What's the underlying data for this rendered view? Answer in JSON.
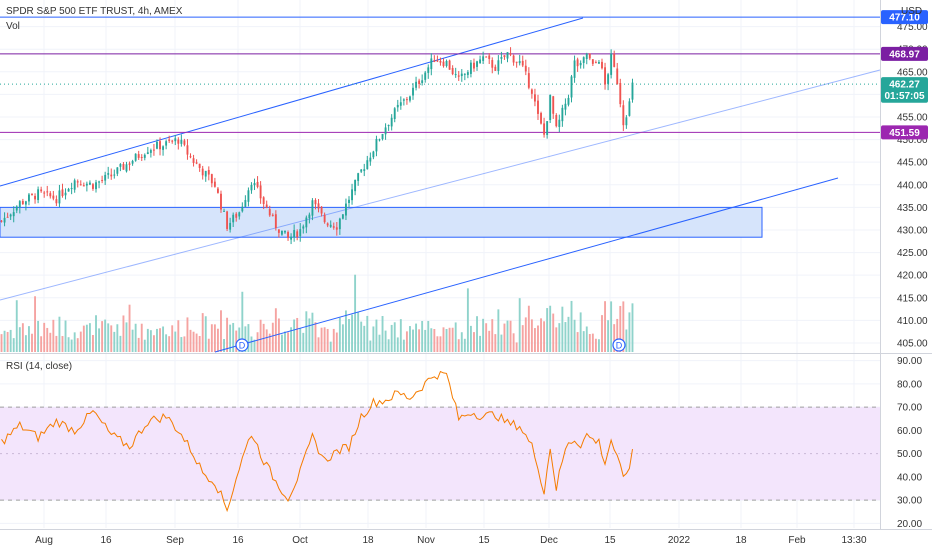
{
  "header": {
    "title": "SPDR S&P 500 ETF TRUST, 4h, AMEX",
    "vol_label": "Vol",
    "currency": "USD"
  },
  "rsi_header": {
    "label": "RSI (14, close)"
  },
  "price_axis": {
    "ticks": [
      "475.00",
      "470.00",
      "465.00",
      "460.00",
      "455.00",
      "450.00",
      "445.00",
      "440.00",
      "435.00",
      "430.00",
      "425.00",
      "420.00",
      "415.00",
      "410.00",
      "405.00"
    ],
    "tick_values": [
      475,
      470,
      465,
      460,
      455,
      450,
      445,
      440,
      435,
      430,
      425,
      420,
      415,
      410,
      405
    ]
  },
  "rsi_axis": {
    "ticks": [
      "90.00",
      "80.00",
      "70.00",
      "60.00",
      "50.00",
      "40.00",
      "30.00",
      "20.00"
    ],
    "tick_values": [
      90,
      80,
      70,
      60,
      50,
      40,
      30,
      20
    ]
  },
  "time_axis": {
    "labels": [
      "Aug",
      "16",
      "Sep",
      "16",
      "Oct",
      "18",
      "Nov",
      "15",
      "Dec",
      "15",
      "2022",
      "18",
      "Feb",
      "13:30"
    ]
  },
  "price_badges": [
    {
      "text": "477.10",
      "value": 477.1,
      "color": "#2962ff"
    },
    {
      "text": "468.97",
      "value": 468.97,
      "color": "#7b1fa2"
    },
    {
      "text": "462.27",
      "value": 462.27,
      "color": "#26a69a"
    },
    {
      "text": "01:57:05",
      "value": 459.7,
      "color": "#26a69a"
    },
    {
      "text": "451.59",
      "value": 451.59,
      "color": "#9c27b0"
    }
  ],
  "horizontal_lines": [
    {
      "value": 477.1,
      "color": "#2962ff"
    },
    {
      "value": 468.97,
      "color": "#7b1fa2"
    },
    {
      "value": 451.59,
      "color": "#9c27b0"
    }
  ],
  "support_zone": {
    "top": 435.0,
    "bottom": 428.4,
    "fill": "#d6e4fb",
    "stroke": "#2962ff"
  },
  "dividend_markers": [
    {
      "label": "D"
    },
    {
      "label": "D"
    }
  ],
  "colors": {
    "up": "#26a69a",
    "down": "#ef5350",
    "vol_up": "#8fd3cb",
    "vol_down": "#f5a3a1",
    "rsi_line": "#f57c00",
    "rsi_band": "#f3e5fc",
    "trend": "#2962ff",
    "grid": "#f0f3fa"
  },
  "chart_data": {
    "type": "candlestick",
    "price_keypoints": [
      [
        0,
        432
      ],
      [
        6,
        436
      ],
      [
        12,
        438
      ],
      [
        18,
        437
      ],
      [
        24,
        441
      ],
      [
        30,
        440
      ],
      [
        36,
        442
      ],
      [
        42,
        445
      ],
      [
        48,
        448
      ],
      [
        54,
        449
      ],
      [
        58,
        450
      ],
      [
        62,
        446
      ],
      [
        66,
        443
      ],
      [
        70,
        440
      ],
      [
        74,
        431
      ],
      [
        78,
        434
      ],
      [
        82,
        441
      ],
      [
        86,
        436
      ],
      [
        90,
        431
      ],
      [
        94,
        428
      ],
      [
        98,
        430
      ],
      [
        102,
        436
      ],
      [
        106,
        432
      ],
      [
        110,
        431
      ],
      [
        114,
        437
      ],
      [
        118,
        443
      ],
      [
        122,
        448
      ],
      [
        126,
        453
      ],
      [
        130,
        457
      ],
      [
        134,
        460
      ],
      [
        138,
        464
      ],
      [
        142,
        468
      ],
      [
        146,
        467
      ],
      [
        150,
        463
      ],
      [
        154,
        466
      ],
      [
        158,
        468
      ],
      [
        162,
        466
      ],
      [
        166,
        469
      ],
      [
        170,
        467
      ],
      [
        174,
        461
      ],
      [
        176,
        455
      ],
      [
        178,
        451
      ],
      [
        180,
        459
      ],
      [
        182,
        452
      ],
      [
        184,
        456
      ],
      [
        186,
        460
      ],
      [
        188,
        467
      ],
      [
        190,
        466
      ],
      [
        192,
        469
      ],
      [
        194,
        466
      ],
      [
        196,
        468
      ],
      [
        198,
        462
      ],
      [
        200,
        468
      ],
      [
        202,
        463
      ],
      [
        204,
        454
      ],
      [
        206,
        458
      ],
      [
        207,
        462
      ]
    ],
    "candle_count": 208,
    "rsi_keypoints": [
      [
        0,
        55
      ],
      [
        6,
        62
      ],
      [
        12,
        57
      ],
      [
        18,
        64
      ],
      [
        24,
        60
      ],
      [
        30,
        68
      ],
      [
        36,
        58
      ],
      [
        42,
        53
      ],
      [
        48,
        64
      ],
      [
        54,
        66
      ],
      [
        58,
        60
      ],
      [
        62,
        52
      ],
      [
        66,
        42
      ],
      [
        70,
        38
      ],
      [
        74,
        26
      ],
      [
        78,
        44
      ],
      [
        82,
        59
      ],
      [
        86,
        47
      ],
      [
        90,
        38
      ],
      [
        94,
        31
      ],
      [
        98,
        42
      ],
      [
        102,
        57
      ],
      [
        106,
        47
      ],
      [
        110,
        51
      ],
      [
        114,
        53
      ],
      [
        118,
        66
      ],
      [
        122,
        72
      ],
      [
        126,
        73
      ],
      [
        130,
        76
      ],
      [
        134,
        74
      ],
      [
        138,
        79
      ],
      [
        142,
        84
      ],
      [
        146,
        84
      ],
      [
        150,
        65
      ],
      [
        154,
        68
      ],
      [
        158,
        66
      ],
      [
        162,
        67
      ],
      [
        166,
        63
      ],
      [
        170,
        62
      ],
      [
        174,
        53
      ],
      [
        176,
        45
      ],
      [
        178,
        33
      ],
      [
        180,
        53
      ],
      [
        182,
        35
      ],
      [
        184,
        47
      ],
      [
        186,
        55
      ],
      [
        188,
        56
      ],
      [
        190,
        54
      ],
      [
        192,
        58
      ],
      [
        194,
        56
      ],
      [
        196,
        55
      ],
      [
        198,
        46
      ],
      [
        200,
        56
      ],
      [
        202,
        48
      ],
      [
        204,
        39
      ],
      [
        206,
        45
      ],
      [
        207,
        50
      ]
    ],
    "rsi_levels": {
      "overbought": 70,
      "oversold": 30,
      "mid": 50
    },
    "price_ylim": [
      403,
      480
    ],
    "rsi_ylim": [
      18,
      92
    ]
  }
}
